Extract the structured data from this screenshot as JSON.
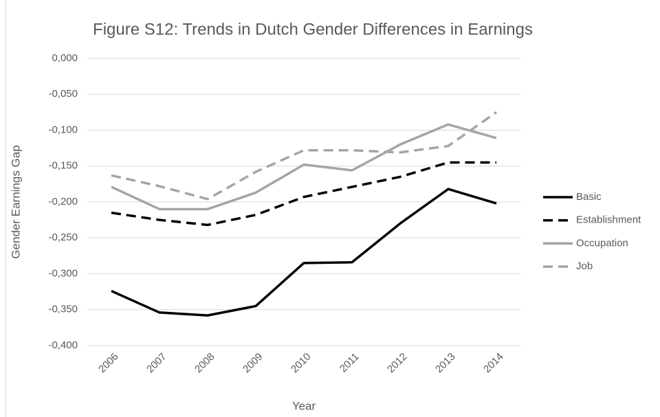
{
  "chart_data": {
    "type": "line",
    "title": "Figure S12: Trends in Dutch Gender Differences in Earnings",
    "x_label": "Year",
    "y_label": "Gender Earnings Gap",
    "categories": [
      "2006",
      "2007",
      "2008",
      "2009",
      "2010",
      "2011",
      "2012",
      "2013",
      "2014"
    ],
    "series": [
      {
        "name": "Basic",
        "color": "#000000",
        "dash": false,
        "values": [
          -0.324,
          -0.354,
          -0.358,
          -0.345,
          -0.285,
          -0.284,
          -0.23,
          -0.182,
          -0.202
        ]
      },
      {
        "name": "Establishment",
        "color": "#000000",
        "dash": true,
        "values": [
          -0.215,
          -0.225,
          -0.232,
          -0.218,
          -0.193,
          -0.179,
          -0.165,
          -0.145,
          -0.145
        ]
      },
      {
        "name": "Occupation",
        "color": "#a5a5a5",
        "dash": false,
        "values": [
          -0.179,
          -0.21,
          -0.21,
          -0.187,
          -0.148,
          -0.156,
          -0.12,
          -0.092,
          -0.111
        ]
      },
      {
        "name": "Job",
        "color": "#a5a5a5",
        "dash": true,
        "values": [
          -0.163,
          -0.178,
          -0.196,
          -0.158,
          -0.128,
          -0.128,
          -0.131,
          -0.122,
          -0.075
        ]
      }
    ],
    "ylim": [
      -0.4,
      0
    ],
    "yticks": [
      {
        "value": 0,
        "label": "0,000"
      },
      {
        "value": -0.05,
        "label": "-0,050"
      },
      {
        "value": -0.1,
        "label": "-0,100"
      },
      {
        "value": -0.15,
        "label": "-0,150"
      },
      {
        "value": -0.2,
        "label": "-0,200"
      },
      {
        "value": -0.25,
        "label": "-0,250"
      },
      {
        "value": -0.3,
        "label": "-0,300"
      },
      {
        "value": -0.35,
        "label": "-0,350"
      },
      {
        "value": -0.4,
        "label": "-0,400"
      }
    ],
    "grid": true,
    "legend": "right"
  }
}
